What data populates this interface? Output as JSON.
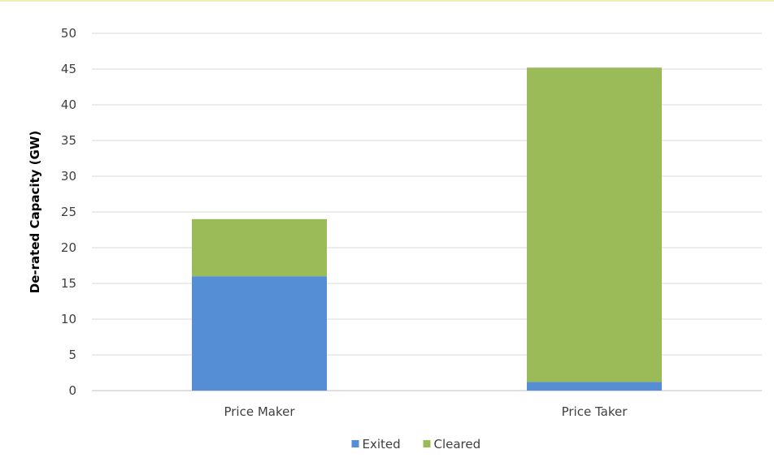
{
  "chart_data": {
    "type": "bar",
    "stacked": true,
    "categories": [
      "Price Maker",
      "Price Taker"
    ],
    "series": [
      {
        "name": "Exited",
        "values": [
          16,
          1.2
        ],
        "color": "#558ED5"
      },
      {
        "name": "Cleared",
        "values": [
          8,
          44
        ],
        "color": "#9BBB59"
      }
    ],
    "title": "",
    "xlabel": "",
    "ylabel": "De-rated Capacity (GW)",
    "ylim": [
      0,
      50
    ],
    "yticks": [
      0,
      5,
      10,
      15,
      20,
      25,
      30,
      35,
      40,
      45,
      50
    ],
    "grid": true,
    "legend_position": "bottom-center",
    "accent_line_color": "#E8E8A0",
    "grid_color": "#D9D9D9"
  }
}
